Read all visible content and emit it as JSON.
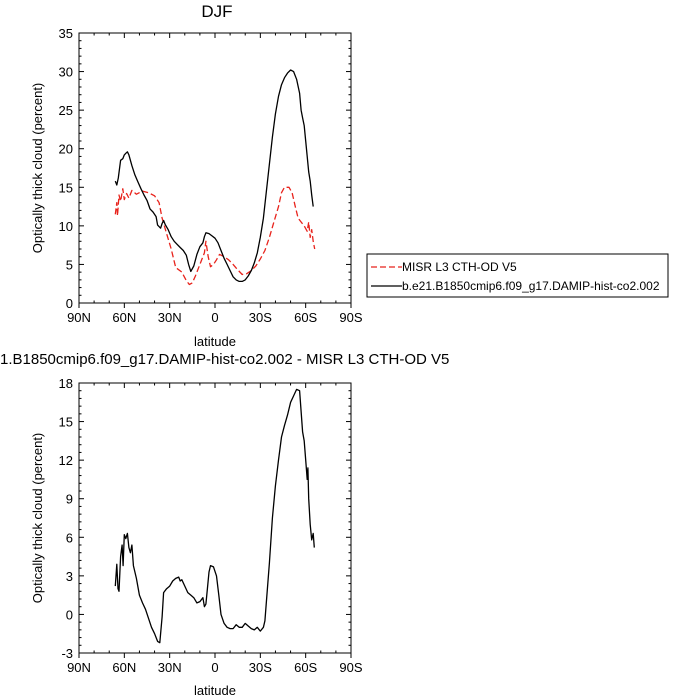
{
  "chart_data": [
    {
      "type": "line",
      "title": "DJF",
      "xlabel": "latitude",
      "ylabel": "Optically thick cloud (percent)",
      "xlim": [
        -90,
        90
      ],
      "ylim": [
        0,
        35
      ],
      "xticks": [
        -90,
        -60,
        -30,
        0,
        30,
        60,
        90
      ],
      "xtick_labels": [
        "90N",
        "60N",
        "30N",
        "0",
        "30S",
        "60S",
        "90S"
      ],
      "yticks": [
        0,
        5,
        10,
        15,
        20,
        25,
        30,
        35
      ],
      "ytick_labels": [
        "0",
        "5",
        "10",
        "15",
        "20",
        "25",
        "30",
        "35"
      ],
      "legend_position": "right",
      "series": [
        {
          "name": "MISR L3 CTH-OD V5",
          "color": "#e8231c",
          "style": "dashed",
          "points": [
            [
              -66,
              11.5
            ],
            [
              -65,
              13
            ],
            [
              -64.5,
              11.3
            ],
            [
              -63.5,
              14
            ],
            [
              -62.5,
              13.2
            ],
            [
              -61,
              14.8
            ],
            [
              -60,
              13.4
            ],
            [
              -58.5,
              14.2
            ],
            [
              -57,
              13.6
            ],
            [
              -55,
              14.6
            ],
            [
              -52,
              14.1
            ],
            [
              -48,
              14.5
            ],
            [
              -44,
              14.3
            ],
            [
              -40,
              13.9
            ],
            [
              -37,
              13
            ],
            [
              -35,
              11
            ],
            [
              -32,
              9
            ],
            [
              -29,
              7
            ],
            [
              -26,
              4.6
            ],
            [
              -22,
              4
            ],
            [
              -19,
              2.9
            ],
            [
              -17,
              2.4
            ],
            [
              -15,
              2.6
            ],
            [
              -13,
              3.5
            ],
            [
              -10,
              5
            ],
            [
              -7,
              6.5
            ],
            [
              -6,
              8
            ],
            [
              -4.5,
              6
            ],
            [
              -3,
              4.7
            ],
            [
              -1,
              5
            ],
            [
              1,
              5.6
            ],
            [
              3,
              6.3
            ],
            [
              6,
              6
            ],
            [
              9,
              5.6
            ],
            [
              12,
              5
            ],
            [
              15,
              4.3
            ],
            [
              18,
              3.7
            ],
            [
              21,
              3.8
            ],
            [
              24,
              4.2
            ],
            [
              27,
              4.8
            ],
            [
              30,
              5.7
            ],
            [
              33,
              6.8
            ],
            [
              36,
              8.5
            ],
            [
              39,
              10.5
            ],
            [
              42,
              12.5
            ],
            [
              44,
              14.3
            ],
            [
              46,
              15
            ],
            [
              49,
              15
            ],
            [
              51,
              14.3
            ],
            [
              53,
              12.6
            ],
            [
              55,
              11
            ],
            [
              57,
              10.5
            ],
            [
              59,
              10
            ],
            [
              61,
              9.3
            ],
            [
              62,
              10.5
            ],
            [
              63,
              8.5
            ],
            [
              64,
              9.5
            ],
            [
              65,
              8
            ],
            [
              66,
              7
            ]
          ]
        },
        {
          "name": "b.e21.B1850cmip6.f09_g17.DAMIP-hist-co2.002",
          "color": "#000000",
          "style": "solid",
          "points": [
            [
              -66,
              15.8
            ],
            [
              -65,
              15.3
            ],
            [
              -64,
              16.2
            ],
            [
              -62.5,
              18.5
            ],
            [
              -61,
              18.7
            ],
            [
              -60,
              19.2
            ],
            [
              -59,
              19.4
            ],
            [
              -58,
              19.6
            ],
            [
              -57,
              19.2
            ],
            [
              -56,
              18.5
            ],
            [
              -55,
              17.8
            ],
            [
              -53,
              16.6
            ],
            [
              -51,
              15.7
            ],
            [
              -49,
              14.8
            ],
            [
              -47,
              14
            ],
            [
              -45,
              13.3
            ],
            [
              -43,
              12.2
            ],
            [
              -41,
              11.8
            ],
            [
              -39,
              11.2
            ],
            [
              -38,
              10.1
            ],
            [
              -36,
              9.7
            ],
            [
              -35,
              10.3
            ],
            [
              -34,
              10.7
            ],
            [
              -33,
              10.2
            ],
            [
              -31,
              9.5
            ],
            [
              -29,
              8.6
            ],
            [
              -27,
              8
            ],
            [
              -25,
              7.6
            ],
            [
              -23,
              7.2
            ],
            [
              -21,
              6.8
            ],
            [
              -19,
              6.2
            ],
            [
              -17.5,
              5
            ],
            [
              -16,
              4.1
            ],
            [
              -14,
              4.8
            ],
            [
              -12,
              6.3
            ],
            [
              -10,
              7.3
            ],
            [
              -8,
              7.8
            ],
            [
              -7,
              8.6
            ],
            [
              -6,
              9.1
            ],
            [
              -4,
              9
            ],
            [
              -2,
              8.7
            ],
            [
              0,
              8.4
            ],
            [
              2,
              7.8
            ],
            [
              4,
              6.8
            ],
            [
              6,
              5.8
            ],
            [
              8,
              5
            ],
            [
              10,
              4.2
            ],
            [
              12,
              3.4
            ],
            [
              14,
              3
            ],
            [
              16,
              2.8
            ],
            [
              18,
              2.8
            ],
            [
              20,
              3
            ],
            [
              22,
              3.5
            ],
            [
              24,
              4.2
            ],
            [
              26,
              5.2
            ],
            [
              28,
              6.5
            ],
            [
              30,
              8.5
            ],
            [
              32,
              11
            ],
            [
              34,
              14.5
            ],
            [
              36,
              18
            ],
            [
              38,
              21.5
            ],
            [
              40,
              24.5
            ],
            [
              42,
              26.8
            ],
            [
              44,
              28.3
            ],
            [
              46,
              29.2
            ],
            [
              48,
              29.8
            ],
            [
              50,
              30.2
            ],
            [
              52,
              30
            ],
            [
              54,
              29
            ],
            [
              56,
              27.2
            ],
            [
              57,
              25
            ],
            [
              58,
              24
            ],
            [
              59,
              23
            ],
            [
              60,
              21
            ],
            [
              61,
              19
            ],
            [
              62,
              17
            ],
            [
              63,
              15.8
            ],
            [
              64,
              14
            ],
            [
              65,
              12.5
            ]
          ]
        }
      ]
    },
    {
      "type": "line",
      "title": "1.B1850cmip6.f09_g17.DAMIP-hist-co2.002 - MISR L3 CTH-OD V5",
      "xlabel": "latitude",
      "ylabel": "Optically thick cloud (percent)",
      "xlim": [
        -90,
        90
      ],
      "ylim": [
        -3,
        18
      ],
      "xticks": [
        -90,
        -60,
        -30,
        0,
        30,
        60,
        90
      ],
      "xtick_labels": [
        "90N",
        "60N",
        "30N",
        "0",
        "30S",
        "60S",
        "90S"
      ],
      "yticks": [
        -3,
        0,
        3,
        6,
        9,
        12,
        15,
        18
      ],
      "ytick_labels": [
        "-3",
        "0",
        "3",
        "6",
        "9",
        "12",
        "15",
        "18"
      ],
      "series": [
        {
          "color": "#000000",
          "style": "solid",
          "points": [
            [
              -66,
              2.2
            ],
            [
              -65,
              3.9
            ],
            [
              -64.2,
              2
            ],
            [
              -63.5,
              1.8
            ],
            [
              -62.5,
              4.5
            ],
            [
              -61.5,
              5.4
            ],
            [
              -60.8,
              3.8
            ],
            [
              -60,
              6.2
            ],
            [
              -59,
              5.9
            ],
            [
              -58,
              6.3
            ],
            [
              -57,
              5.2
            ],
            [
              -56,
              4.8
            ],
            [
              -55,
              5.4
            ],
            [
              -54,
              3.8
            ],
            [
              -52,
              2.8
            ],
            [
              -50,
              1.5
            ],
            [
              -48,
              0.9
            ],
            [
              -46,
              0.4
            ],
            [
              -44,
              -0.3
            ],
            [
              -42,
              -1
            ],
            [
              -40,
              -1.5
            ],
            [
              -38,
              -2.1
            ],
            [
              -36.5,
              -2.2
            ],
            [
              -35,
              -0.2
            ],
            [
              -34,
              1.7
            ],
            [
              -32,
              2
            ],
            [
              -30,
              2.2
            ],
            [
              -28,
              2.6
            ],
            [
              -26,
              2.8
            ],
            [
              -24,
              2.9
            ],
            [
              -23,
              2.6
            ],
            [
              -22,
              2.7
            ],
            [
              -20,
              2.2
            ],
            [
              -18,
              1.7
            ],
            [
              -16,
              1.5
            ],
            [
              -14,
              1.3
            ],
            [
              -12,
              0.9
            ],
            [
              -10,
              1
            ],
            [
              -8,
              1.3
            ],
            [
              -7,
              0.6
            ],
            [
              -6,
              0.8
            ],
            [
              -5,
              2
            ],
            [
              -4,
              3.3
            ],
            [
              -3,
              3.8
            ],
            [
              -1,
              3.7
            ],
            [
              1,
              3
            ],
            [
              2.5,
              1.5
            ],
            [
              4,
              0
            ],
            [
              6,
              -0.7
            ],
            [
              8,
              -1
            ],
            [
              10,
              -1.1
            ],
            [
              12,
              -1.1
            ],
            [
              14,
              -0.8
            ],
            [
              16,
              -1
            ],
            [
              18,
              -1
            ],
            [
              20,
              -0.7
            ],
            [
              22,
              -0.9
            ],
            [
              24,
              -1.1
            ],
            [
              26,
              -1.2
            ],
            [
              28,
              -1
            ],
            [
              30,
              -1.3
            ],
            [
              32,
              -1
            ],
            [
              33,
              -0.5
            ],
            [
              34,
              1
            ],
            [
              36,
              4
            ],
            [
              38,
              7.5
            ],
            [
              40,
              10
            ],
            [
              42,
              12
            ],
            [
              44,
              13.8
            ],
            [
              46,
              14.7
            ],
            [
              48,
              15.5
            ],
            [
              50,
              16.5
            ],
            [
              52,
              17
            ],
            [
              54,
              17.5
            ],
            [
              56,
              17.4
            ],
            [
              57,
              15.8
            ],
            [
              58,
              14.2
            ],
            [
              59,
              13.5
            ],
            [
              60,
              12
            ],
            [
              61,
              10.5
            ],
            [
              61.5,
              11.4
            ],
            [
              62,
              9
            ],
            [
              63,
              7
            ],
            [
              64,
              5.8
            ],
            [
              65,
              6.3
            ],
            [
              65.7,
              5.2
            ]
          ]
        }
      ]
    }
  ]
}
